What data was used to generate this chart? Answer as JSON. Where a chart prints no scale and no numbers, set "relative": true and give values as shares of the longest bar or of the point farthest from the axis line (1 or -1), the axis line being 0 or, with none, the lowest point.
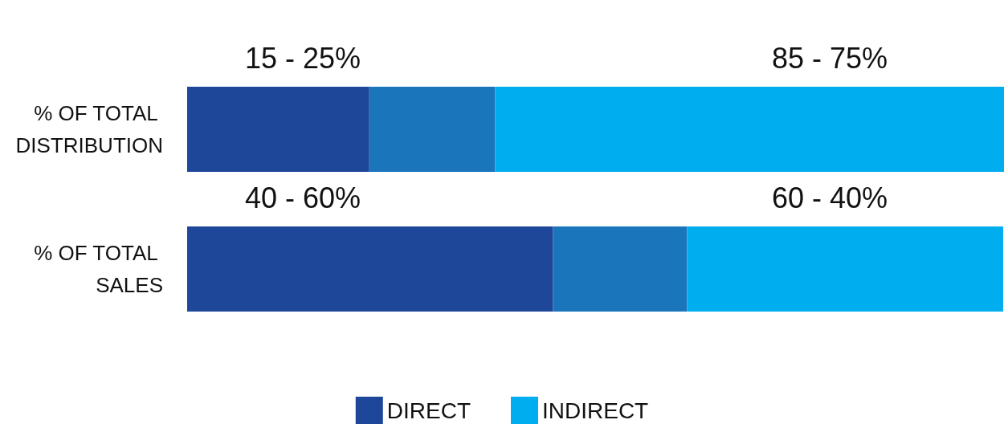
{
  "chart_data": {
    "type": "bar",
    "orientation": "horizontal",
    "stacked": true,
    "relative": true,
    "categories": [
      "% OF TOTAL DISTRIBUTION",
      "% OF TOTAL SALES"
    ],
    "series": [
      {
        "name": "DIRECT",
        "color": "#1e4799",
        "values": [
          0.223,
          0.448
        ]
      },
      {
        "color": "#1b75bb",
        "values": [
          0.154,
          0.164
        ]
      },
      {
        "name": "INDIRECT",
        "color": "#00aeef",
        "values": [
          0.623,
          0.387
        ]
      }
    ],
    "tick_labels": "y",
    "annotations": [
      "15 - 25%",
      "85 - 75%",
      "40 - 60%",
      "60 - 40%"
    ],
    "legend": "bottom"
  }
}
